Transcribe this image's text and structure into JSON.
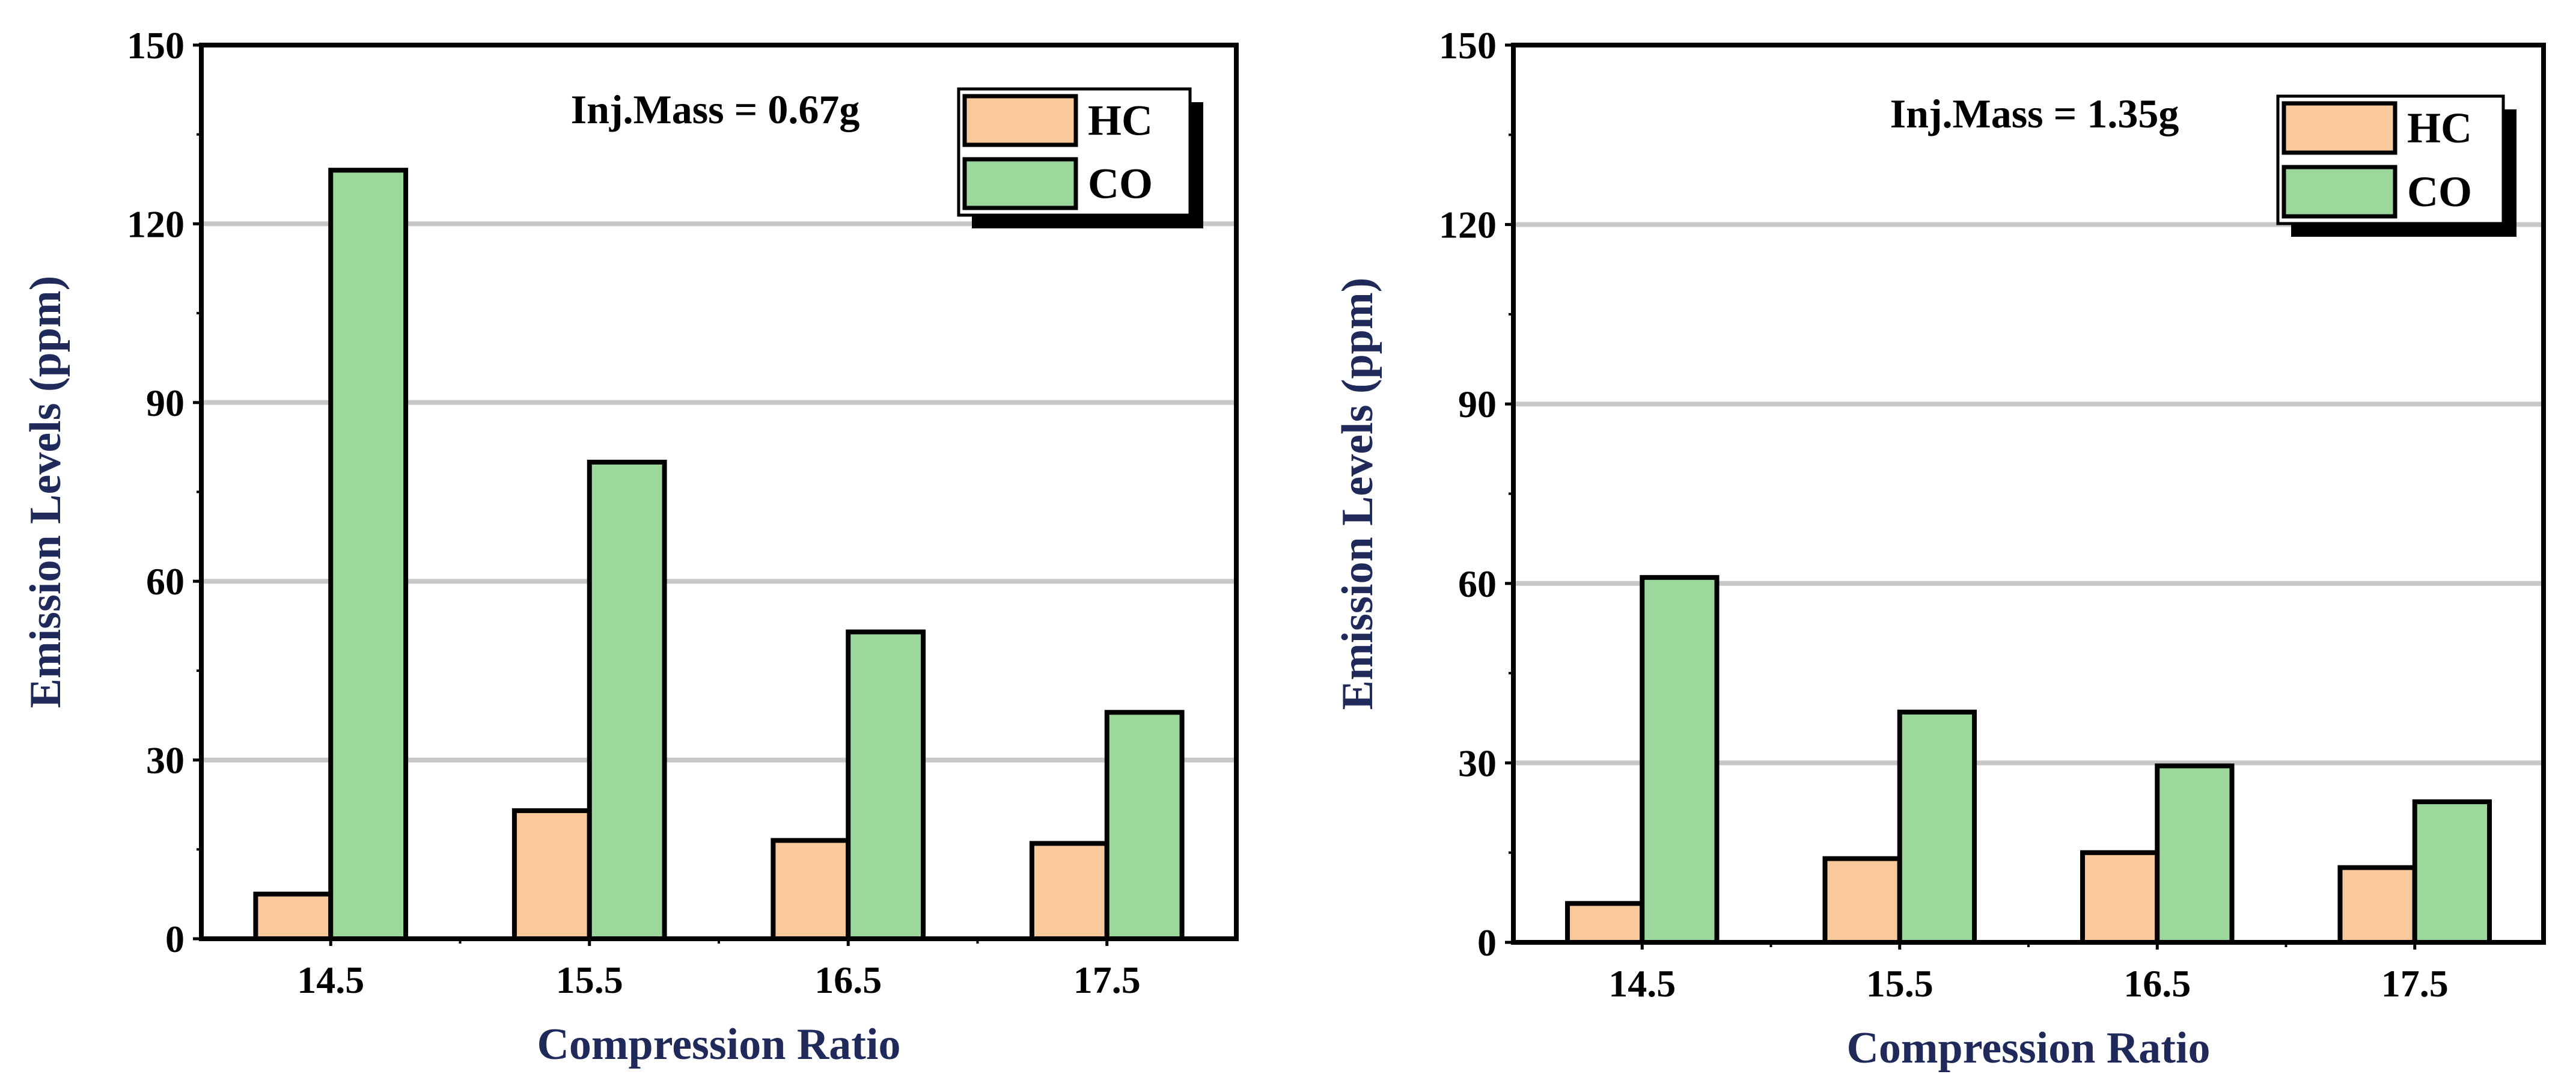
{
  "chart_data": [
    {
      "type": "bar",
      "annotation": "Inj.Mass = 0.67g",
      "categories": [
        "14.5",
        "15.5",
        "16.5",
        "17.5"
      ],
      "series": [
        {
          "name": "HC",
          "values": [
            7.5,
            21.5,
            16.5,
            16.0
          ]
        },
        {
          "name": "CO",
          "values": [
            129.0,
            80.0,
            51.5,
            38.0
          ]
        }
      ],
      "xlabel": "Compression Ratio",
      "ylabel": "Emission Levels (ppm)",
      "ylim": [
        0,
        150
      ],
      "yticks": [
        "0",
        "30",
        "60",
        "90",
        "120",
        "150"
      ],
      "grid": true,
      "legend": "top-right"
    },
    {
      "type": "bar",
      "annotation": "Inj.Mass = 1.35g",
      "categories": [
        "14.5",
        "15.5",
        "16.5",
        "17.5"
      ],
      "series": [
        {
          "name": "HC",
          "values": [
            6.5,
            14.0,
            15.0,
            12.5
          ]
        },
        {
          "name": "CO",
          "values": [
            61.0,
            38.5,
            29.5,
            23.5
          ]
        }
      ],
      "xlabel": "Compression Ratio",
      "ylabel": "Emission Levels (ppm)",
      "ylim": [
        0,
        150
      ],
      "yticks": [
        "0",
        "30",
        "60",
        "90",
        "120",
        "150"
      ],
      "grid": true,
      "legend": "top-right"
    }
  ],
  "colors": {
    "HC": "#f9c99c",
    "CO": "#9cd79c",
    "grid": "#c8c8c8",
    "axis_title": "#1f2a5a"
  }
}
